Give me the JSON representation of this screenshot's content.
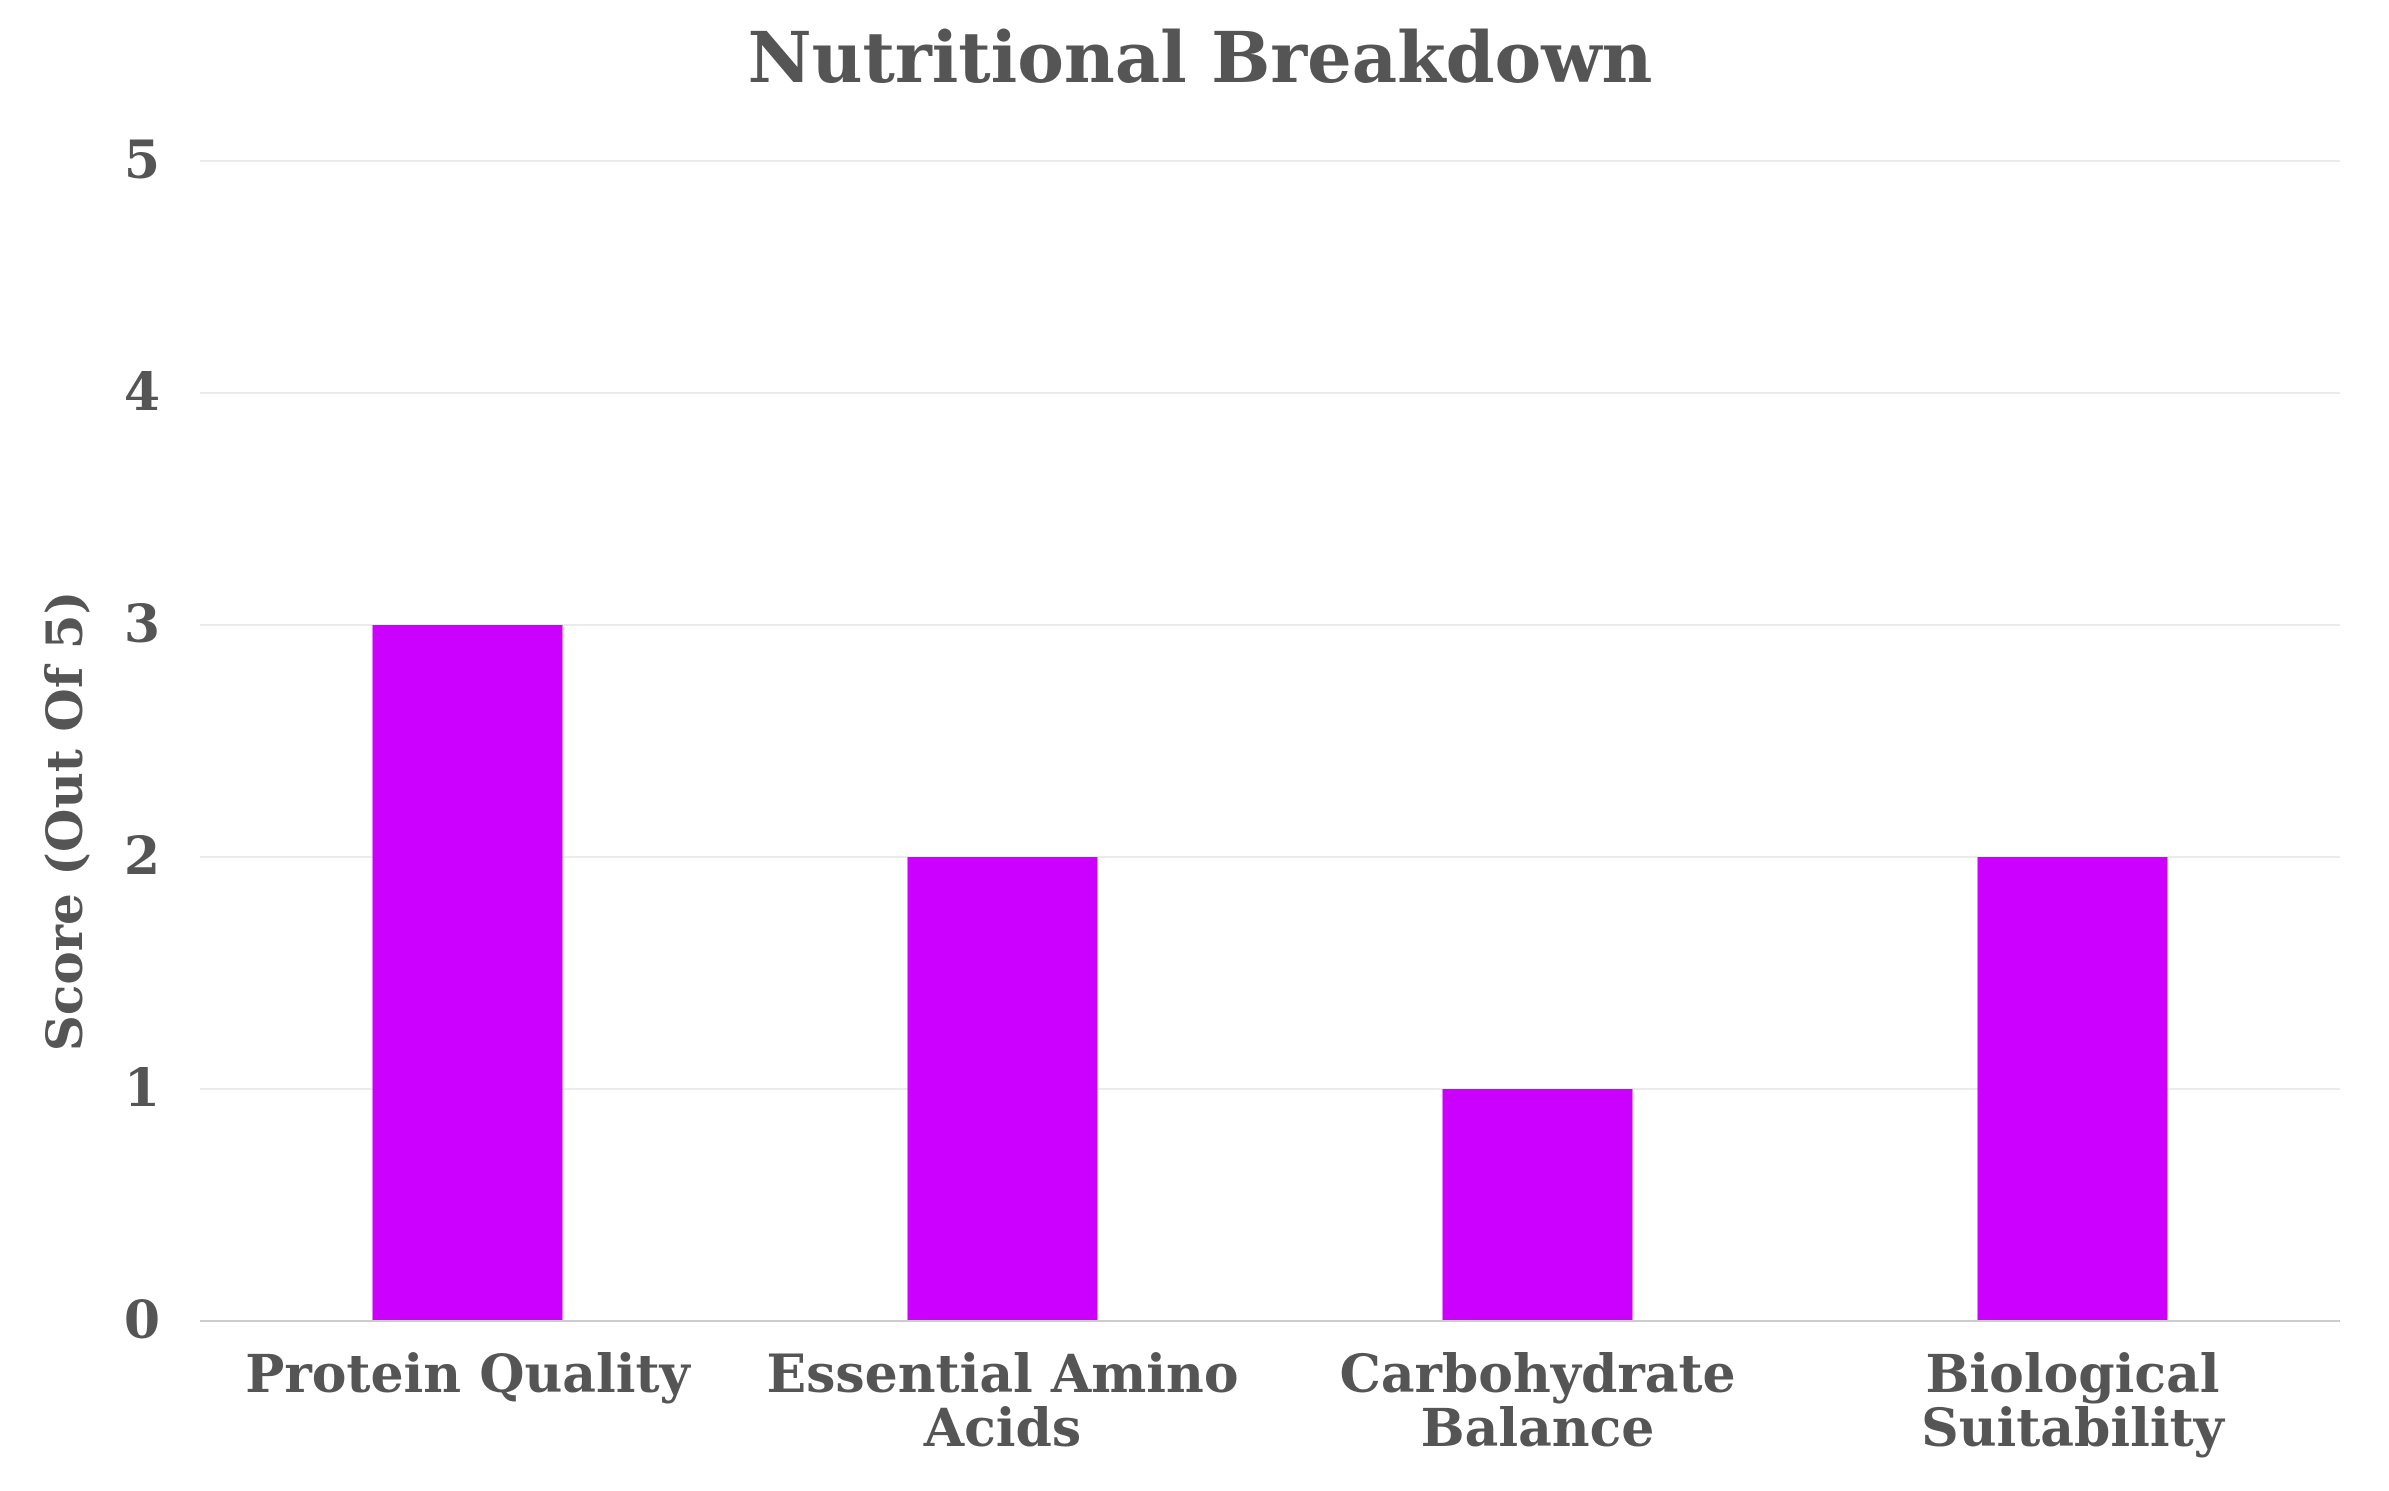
{
  "chart_data": {
    "type": "bar",
    "title": "Nutritional Breakdown",
    "xlabel": "",
    "ylabel": "Score (Out Of 5)",
    "categories": [
      [
        "Protein Quality"
      ],
      [
        "Essential Amino",
        "Acids"
      ],
      [
        "Carbohydrate",
        "Balance"
      ],
      [
        "Biological",
        "Suitability"
      ]
    ],
    "values": [
      3,
      2,
      1,
      2
    ],
    "ylim": [
      0,
      5
    ],
    "yticks": [
      0,
      1,
      2,
      3,
      4,
      5
    ],
    "grid": true,
    "legend": "none",
    "colors": {
      "bar": "#cc00ff",
      "text": "#555555",
      "grid": "#ebebeb",
      "axis": "#cccccc"
    }
  }
}
